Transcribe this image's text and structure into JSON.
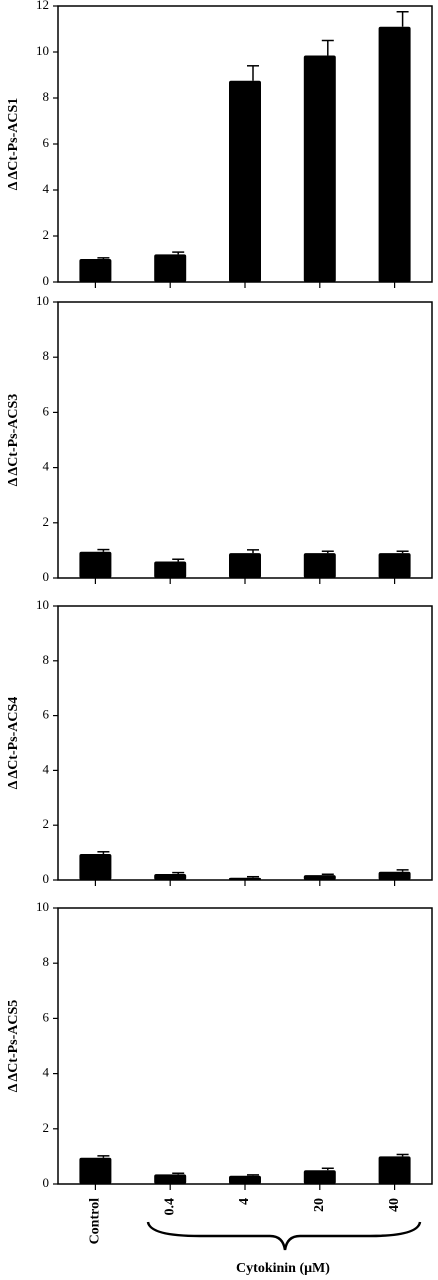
{
  "chart_data": [
    {
      "type": "bar",
      "y_label": "Δ ΔCt-Ps-ACS1",
      "color": "#000000",
      "values": [
        1.0,
        1.2,
        8.75,
        9.85,
        11.1
      ],
      "errors": [
        0.05,
        0.1,
        0.65,
        0.65,
        0.65
      ],
      "ylim": [
        0,
        12
      ],
      "yticks": [
        0,
        2,
        4,
        6,
        8,
        10,
        12
      ]
    },
    {
      "type": "bar",
      "y_label": "Δ ΔCt-Ps-ACS3",
      "color": "#000000",
      "values": [
        0.95,
        0.6,
        0.9,
        0.9,
        0.9
      ],
      "errors": [
        0.08,
        0.08,
        0.12,
        0.07,
        0.07
      ],
      "ylim": [
        0,
        10
      ],
      "yticks": [
        0,
        2,
        4,
        6,
        8,
        10
      ]
    },
    {
      "type": "bar",
      "y_label": "Δ ΔCt-Ps-ACS4",
      "color": "#000000",
      "values": [
        0.95,
        0.22,
        0.08,
        0.18,
        0.3
      ],
      "errors": [
        0.08,
        0.05,
        0.04,
        0.03,
        0.07
      ],
      "ylim": [
        0,
        10
      ],
      "yticks": [
        0,
        2,
        4,
        6,
        8,
        10
      ]
    },
    {
      "type": "bar",
      "y_label": "Δ ΔCt-Ps-ACS5",
      "color": "#000000",
      "categories": [
        "Control",
        "0.4",
        "4",
        "20",
        "40"
      ],
      "x_label": "Cytokinin (μM)",
      "values": [
        0.95,
        0.35,
        0.3,
        0.5,
        1.0
      ],
      "errors": [
        0.07,
        0.04,
        0.03,
        0.07,
        0.07
      ],
      "ylim": [
        0,
        10
      ],
      "yticks": [
        0,
        2,
        4,
        6,
        8,
        10
      ]
    }
  ]
}
